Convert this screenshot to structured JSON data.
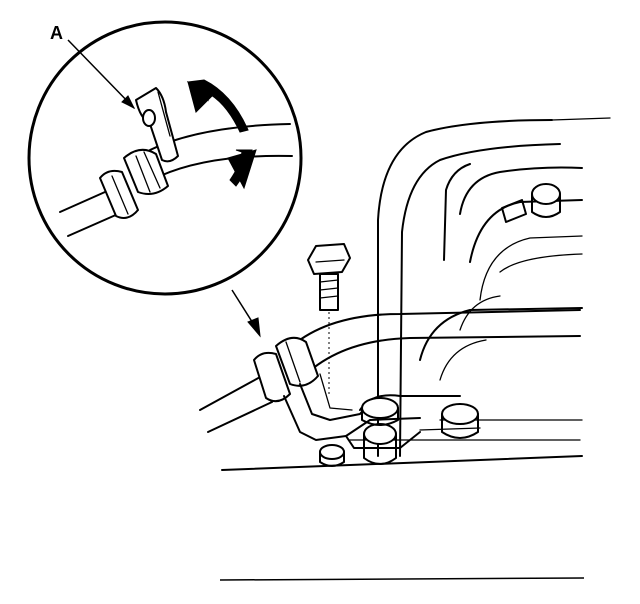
{
  "diagram": {
    "callout_label": "A"
  }
}
